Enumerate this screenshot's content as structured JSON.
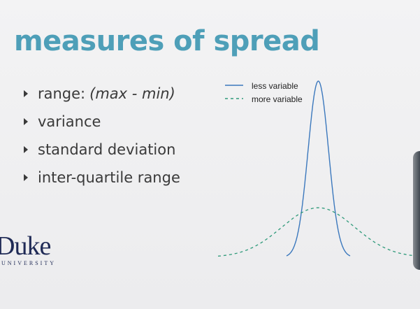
{
  "slide": {
    "title": "measures of spread",
    "bullets": [
      {
        "text": "range:",
        "note": "(max - min)"
      },
      {
        "text": "variance",
        "note": ""
      },
      {
        "text": "standard deviation",
        "note": ""
      },
      {
        "text": "inter-quartile range",
        "note": ""
      }
    ]
  },
  "logo": {
    "word": "Duke",
    "sub": "UNIVERSITY"
  },
  "chart_data": {
    "type": "line",
    "title": "",
    "xlabel": "",
    "ylabel": "",
    "legend_position": "top-left",
    "series": [
      {
        "name": "less variable",
        "style": "solid",
        "color": "#3b78bd",
        "center": 0,
        "sd": 0.45
      },
      {
        "name": "more variable",
        "style": "dashed",
        "color": "#2f9a7a",
        "center": 0,
        "sd": 1.6
      }
    ],
    "x_range": [
      -4.4,
      4.4
    ],
    "grid": false
  }
}
